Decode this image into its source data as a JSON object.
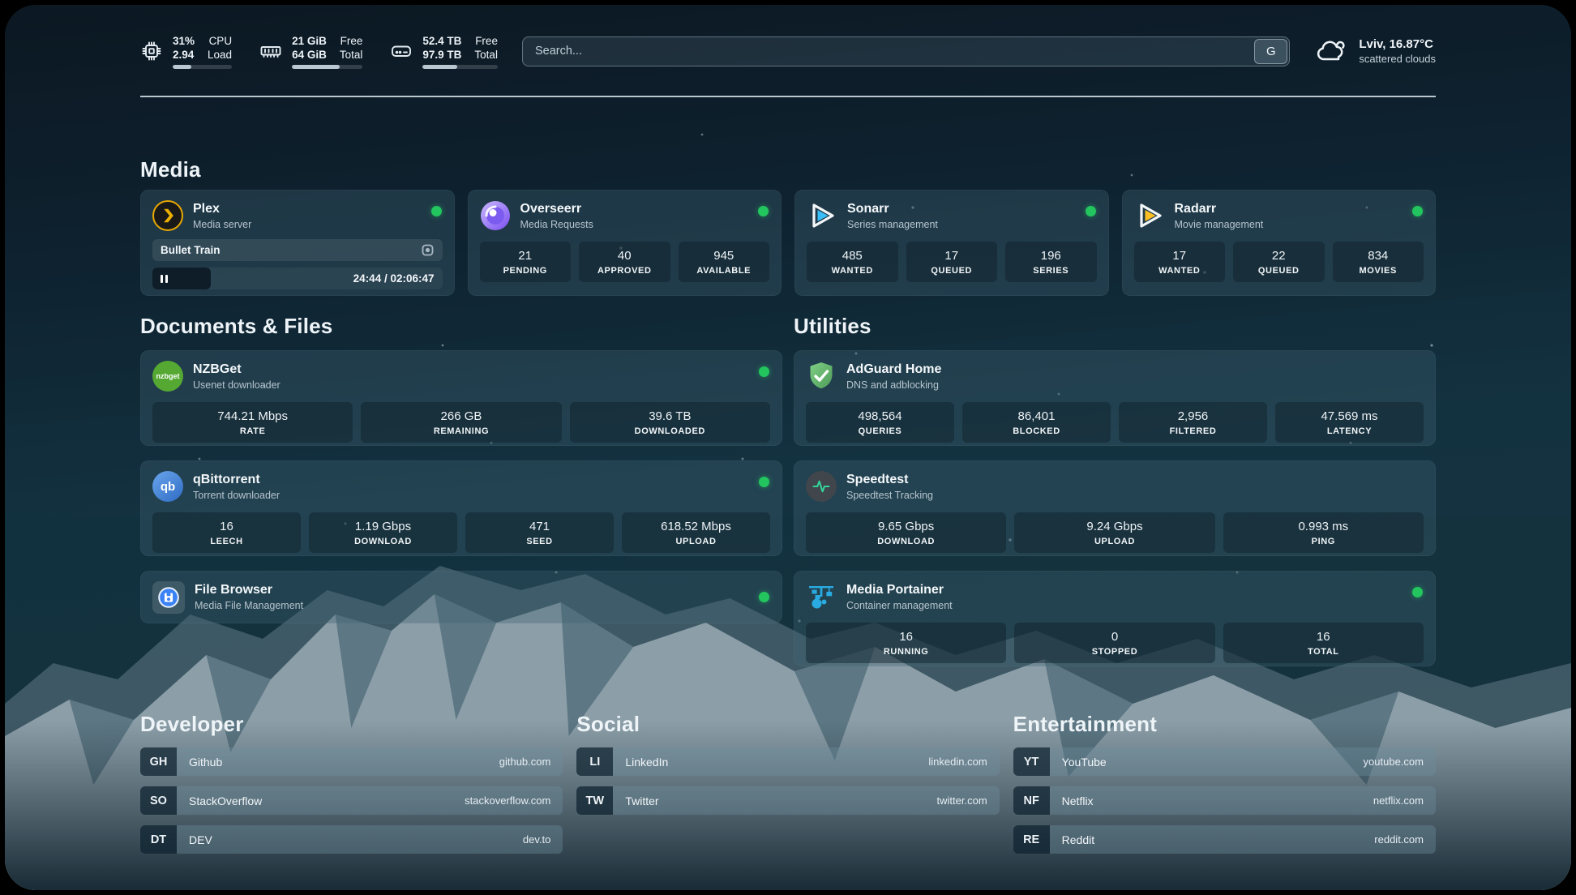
{
  "topbar": {
    "cpu": {
      "value1": "31%",
      "value2": "2.94",
      "label1": "CPU",
      "label2": "Load",
      "progress_pct": 31
    },
    "memory": {
      "value1": "21 GiB",
      "value2": "64 GiB",
      "label1": "Free",
      "label2": "Total",
      "progress_pct": 67
    },
    "disk": {
      "value1": "52.4 TB",
      "value2": "97.9 TB",
      "label1": "Free",
      "label2": "Total",
      "progress_pct": 46
    },
    "search": {
      "placeholder": "Search...",
      "engine_label": "G"
    },
    "weather": {
      "line1": "Lviv, 16.87°C",
      "line2": "scattered clouds",
      "icon": "cloud-icon"
    }
  },
  "media": {
    "title": "Media",
    "plex": {
      "name": "Plex",
      "desc": "Media server",
      "icon": "plex-icon",
      "now_playing": "Bullet Train",
      "time": "24:44 / 02:06:47",
      "progress_pct": 20,
      "online": true
    },
    "overseerr": {
      "name": "Overseerr",
      "desc": "Media Requests",
      "icon": "overseerr-icon",
      "online": true,
      "stats": [
        {
          "value": "21",
          "label": "PENDING"
        },
        {
          "value": "40",
          "label": "APPROVED"
        },
        {
          "value": "945",
          "label": "AVAILABLE"
        }
      ]
    },
    "sonarr": {
      "name": "Sonarr",
      "desc": "Series management",
      "icon": "sonarr-icon",
      "online": true,
      "stats": [
        {
          "value": "485",
          "label": "WANTED"
        },
        {
          "value": "17",
          "label": "QUEUED"
        },
        {
          "value": "196",
          "label": "SERIES"
        }
      ]
    },
    "radarr": {
      "name": "Radarr",
      "desc": "Movie management",
      "icon": "radarr-icon",
      "online": true,
      "stats": [
        {
          "value": "17",
          "label": "WANTED"
        },
        {
          "value": "22",
          "label": "QUEUED"
        },
        {
          "value": "834",
          "label": "MOVIES"
        }
      ]
    }
  },
  "docs": {
    "title": "Documents & Files",
    "nzbget": {
      "name": "NZBGet",
      "desc": "Usenet downloader",
      "icon": "nzbget-icon",
      "icon_text": "nzbget",
      "online": true,
      "stats": [
        {
          "value": "744.21 Mbps",
          "label": "RATE"
        },
        {
          "value": "266 GB",
          "label": "REMAINING"
        },
        {
          "value": "39.6 TB",
          "label": "DOWNLOADED"
        }
      ]
    },
    "qbittorrent": {
      "name": "qBittorrent",
      "desc": "Torrent downloader",
      "icon": "qbittorrent-icon",
      "icon_text": "qb",
      "online": true,
      "stats": [
        {
          "value": "16",
          "label": "LEECH"
        },
        {
          "value": "1.19 Gbps",
          "label": "DOWNLOAD"
        },
        {
          "value": "471",
          "label": "SEED"
        },
        {
          "value": "618.52 Mbps",
          "label": "UPLOAD"
        }
      ]
    },
    "filebrowser": {
      "name": "File Browser",
      "desc": "Media File Management",
      "icon": "filebrowser-icon",
      "online": true
    }
  },
  "utilities": {
    "title": "Utilities",
    "adguard": {
      "name": "AdGuard Home",
      "desc": "DNS and adblocking",
      "icon": "adguard-shield-icon",
      "stats": [
        {
          "value": "498,564",
          "label": "QUERIES"
        },
        {
          "value": "86,401",
          "label": "BLOCKED"
        },
        {
          "value": "2,956",
          "label": "FILTERED"
        },
        {
          "value": "47.569 ms",
          "label": "LATENCY"
        }
      ]
    },
    "speedtest": {
      "name": "Speedtest",
      "desc": "Speedtest Tracking",
      "icon": "speedtest-pulse-icon",
      "stats": [
        {
          "value": "9.65 Gbps",
          "label": "DOWNLOAD"
        },
        {
          "value": "9.24 Gbps",
          "label": "UPLOAD"
        },
        {
          "value": "0.993 ms",
          "label": "PING"
        }
      ]
    },
    "portainer": {
      "name": "Media Portainer",
      "desc": "Container management",
      "icon": "portainer-crane-icon",
      "online": true,
      "stats": [
        {
          "value": "16",
          "label": "RUNNING"
        },
        {
          "value": "0",
          "label": "STOPPED"
        },
        {
          "value": "16",
          "label": "TOTAL"
        }
      ]
    }
  },
  "bookmarks": {
    "developer": {
      "title": "Developer",
      "links": [
        {
          "abbr": "GH",
          "name": "Github",
          "url": "github.com"
        },
        {
          "abbr": "SO",
          "name": "StackOverflow",
          "url": "stackoverflow.com"
        },
        {
          "abbr": "DT",
          "name": "DEV",
          "url": "dev.to"
        }
      ]
    },
    "social": {
      "title": "Social",
      "links": [
        {
          "abbr": "LI",
          "name": "LinkedIn",
          "url": "linkedin.com"
        },
        {
          "abbr": "TW",
          "name": "Twitter",
          "url": "twitter.com"
        }
      ]
    },
    "entertainment": {
      "title": "Entertainment",
      "links": [
        {
          "abbr": "YT",
          "name": "YouTube",
          "url": "youtube.com"
        },
        {
          "abbr": "NF",
          "name": "Netflix",
          "url": "netflix.com"
        },
        {
          "abbr": "RE",
          "name": "Reddit",
          "url": "reddit.com"
        }
      ]
    }
  },
  "colors": {
    "status_online": "#22c55e",
    "accent_snow": "#c6d3db",
    "bg_top": "#0c1822",
    "bg_teal": "#15333f"
  }
}
